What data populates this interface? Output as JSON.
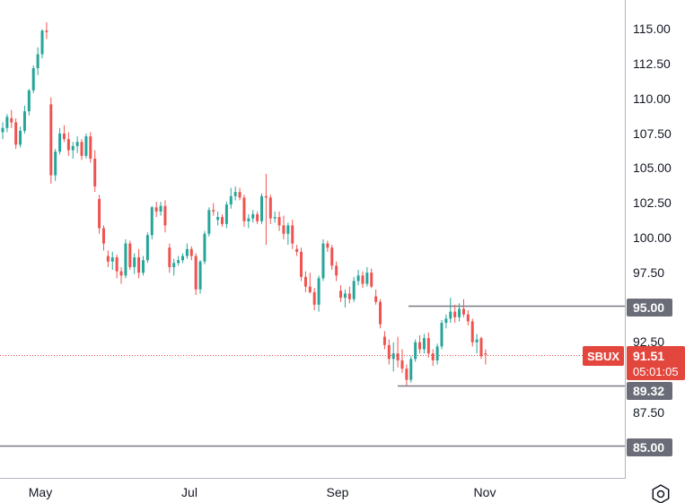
{
  "chart_data": {
    "type": "candlestick",
    "symbol": "SBUX",
    "last_price": "91.51",
    "countdown": "05:01:05",
    "y_ticks": [
      "115.00",
      "112.50",
      "110.00",
      "107.50",
      "105.00",
      "102.50",
      "100.00",
      "97.50",
      "92.50",
      "87.50"
    ],
    "x_ticks": [
      "May",
      "Jul",
      "Sep",
      "Nov"
    ],
    "ylim": [
      83.5,
      116.5
    ],
    "levels": [
      {
        "price": 95.0,
        "label": "95.00"
      },
      {
        "price": 89.32,
        "label": "89.32"
      },
      {
        "price": 85.0,
        "label": "85.00"
      }
    ],
    "last_price_value": 91.51,
    "colors": {
      "up": "#26a69a",
      "down": "#ef5350",
      "price_badge": "#e3463d",
      "level_badge": "#6a6d78",
      "level_line": "#787b86",
      "last_line": "#e3463d"
    },
    "candles": [
      [
        107.5,
        108.2,
        107.0,
        107.8
      ],
      [
        107.8,
        108.8,
        107.5,
        108.6
      ],
      [
        108.5,
        109.1,
        107.8,
        108.2
      ],
      [
        108.2,
        108.5,
        106.3,
        106.6
      ],
      [
        106.6,
        107.9,
        106.4,
        107.6
      ],
      [
        107.6,
        109.4,
        107.4,
        109.0
      ],
      [
        109.0,
        110.6,
        108.7,
        110.5
      ],
      [
        110.5,
        112.3,
        110.3,
        112.1
      ],
      [
        112.1,
        113.6,
        111.6,
        113.1
      ],
      [
        113.1,
        114.9,
        112.8,
        114.8
      ],
      [
        114.8,
        115.4,
        114.2,
        114.7
      ],
      [
        109.5,
        110.0,
        103.8,
        104.4
      ],
      [
        104.4,
        106.3,
        104.0,
        106.1
      ],
      [
        106.1,
        107.8,
        105.9,
        107.4
      ],
      [
        107.4,
        108.0,
        106.8,
        107.0
      ],
      [
        107.0,
        107.5,
        105.8,
        106.2
      ],
      [
        106.2,
        106.8,
        105.6,
        106.5
      ],
      [
        106.5,
        107.2,
        106.0,
        106.8
      ],
      [
        106.8,
        107.0,
        105.5,
        105.8
      ],
      [
        105.8,
        107.4,
        105.6,
        107.2
      ],
      [
        107.2,
        107.5,
        105.3,
        105.6
      ],
      [
        105.6,
        106.2,
        103.2,
        103.6
      ],
      [
        102.7,
        103.0,
        100.2,
        100.6
      ],
      [
        100.6,
        100.8,
        99.0,
        99.5
      ],
      [
        98.6,
        99.0,
        97.8,
        98.2
      ],
      [
        98.2,
        98.9,
        97.6,
        98.5
      ],
      [
        98.5,
        98.7,
        97.0,
        97.5
      ],
      [
        97.5,
        97.8,
        96.6,
        97.2
      ],
      [
        97.2,
        99.8,
        97.0,
        99.5
      ],
      [
        99.5,
        99.7,
        97.6,
        97.8
      ],
      [
        97.8,
        98.8,
        97.3,
        98.5
      ],
      [
        98.5,
        99.1,
        97.0,
        97.4
      ],
      [
        97.4,
        98.6,
        97.2,
        98.3
      ],
      [
        98.3,
        100.3,
        98.1,
        100.1
      ],
      [
        100.1,
        102.2,
        99.8,
        102.1
      ],
      [
        102.1,
        102.5,
        101.4,
        101.8
      ],
      [
        101.8,
        102.5,
        101.5,
        102.2
      ],
      [
        102.2,
        102.6,
        100.3,
        100.8
      ],
      [
        99.2,
        99.5,
        97.4,
        97.8
      ],
      [
        97.8,
        98.4,
        97.2,
        98.1
      ],
      [
        98.1,
        98.6,
        97.9,
        98.3
      ],
      [
        98.3,
        98.8,
        98.1,
        98.6
      ],
      [
        98.6,
        99.5,
        98.4,
        99.1
      ],
      [
        99.1,
        99.3,
        98.3,
        98.6
      ],
      [
        98.6,
        98.8,
        95.8,
        96.2
      ],
      [
        96.2,
        98.3,
        95.9,
        98.2
      ],
      [
        98.2,
        100.4,
        98.0,
        100.2
      ],
      [
        100.2,
        102.1,
        100.0,
        101.9
      ],
      [
        101.9,
        102.4,
        101.5,
        101.8
      ],
      [
        101.2,
        101.8,
        100.8,
        101.4
      ],
      [
        101.4,
        101.6,
        100.7,
        100.9
      ],
      [
        100.9,
        102.5,
        100.6,
        102.3
      ],
      [
        102.3,
        103.5,
        102.0,
        102.9
      ],
      [
        102.9,
        103.6,
        102.6,
        103.2
      ],
      [
        103.2,
        103.5,
        102.6,
        102.8
      ],
      [
        102.8,
        103.0,
        100.7,
        101.1
      ],
      [
        101.1,
        101.6,
        100.6,
        101.3
      ],
      [
        101.3,
        101.9,
        101.0,
        101.6
      ],
      [
        101.6,
        101.8,
        100.9,
        101.1
      ],
      [
        101.1,
        103.1,
        100.9,
        102.9
      ],
      [
        102.9,
        104.5,
        99.4,
        102.8
      ],
      [
        102.8,
        103.0,
        100.9,
        101.3
      ],
      [
        101.3,
        101.8,
        101.0,
        101.4
      ],
      [
        101.4,
        101.8,
        100.4,
        100.8
      ],
      [
        100.8,
        101.5,
        99.8,
        100.2
      ],
      [
        100.2,
        101.0,
        99.4,
        100.8
      ],
      [
        100.8,
        101.2,
        99.1,
        99.5
      ],
      [
        99.1,
        99.4,
        98.6,
        98.9
      ],
      [
        98.9,
        99.2,
        96.8,
        97.1
      ],
      [
        97.1,
        97.5,
        96.0,
        96.4
      ],
      [
        96.4,
        97.4,
        95.9,
        96.0
      ],
      [
        96.0,
        96.3,
        94.7,
        95.1
      ],
      [
        95.1,
        97.2,
        94.6,
        97.0
      ],
      [
        97.0,
        99.8,
        96.8,
        99.5
      ],
      [
        99.5,
        99.7,
        98.9,
        99.2
      ],
      [
        99.2,
        99.4,
        97.6,
        97.9
      ],
      [
        97.9,
        98.2,
        96.8,
        97.2
      ],
      [
        96.1,
        96.5,
        95.3,
        95.6
      ],
      [
        95.6,
        96.2,
        94.9,
        95.9
      ],
      [
        95.9,
        96.4,
        95.2,
        95.5
      ],
      [
        95.5,
        97.1,
        95.3,
        96.8
      ],
      [
        96.8,
        97.6,
        96.5,
        97.2
      ],
      [
        97.2,
        97.5,
        96.3,
        96.6
      ],
      [
        96.6,
        97.8,
        96.4,
        97.4
      ],
      [
        97.4,
        97.7,
        96.3,
        96.4
      ],
      [
        95.7,
        96.2,
        95.1,
        95.3
      ],
      [
        95.3,
        95.5,
        93.4,
        93.7
      ],
      [
        92.8,
        93.2,
        91.9,
        92.2
      ],
      [
        92.2,
        92.6,
        90.8,
        91.2
      ],
      [
        91.2,
        92.4,
        90.3,
        91.6
      ],
      [
        91.6,
        92.8,
        90.6,
        91.1
      ],
      [
        91.1,
        91.9,
        90.2,
        90.5
      ],
      [
        90.5,
        90.8,
        89.3,
        89.7
      ],
      [
        89.7,
        91.4,
        89.5,
        91.2
      ],
      [
        91.2,
        92.6,
        91.0,
        92.4
      ],
      [
        92.4,
        92.9,
        91.6,
        91.9
      ],
      [
        91.9,
        93.0,
        91.6,
        92.7
      ],
      [
        92.7,
        93.1,
        91.3,
        91.6
      ],
      [
        91.6,
        91.9,
        90.7,
        91.1
      ],
      [
        91.1,
        92.3,
        90.8,
        92.1
      ],
      [
        92.1,
        94.0,
        91.9,
        93.8
      ],
      [
        93.8,
        94.4,
        93.4,
        94.1
      ],
      [
        94.1,
        95.6,
        93.8,
        94.6
      ],
      [
        94.6,
        95.1,
        93.8,
        94.2
      ],
      [
        94.2,
        95.2,
        93.9,
        94.8
      ],
      [
        94.8,
        95.5,
        94.2,
        94.4
      ],
      [
        94.4,
        94.7,
        93.6,
        93.9
      ],
      [
        93.9,
        94.1,
        92.1,
        92.4
      ],
      [
        92.4,
        93.0,
        91.6,
        92.6
      ],
      [
        92.7,
        92.8,
        91.2,
        91.4
      ],
      [
        91.6,
        91.9,
        90.8,
        91.51
      ]
    ]
  }
}
